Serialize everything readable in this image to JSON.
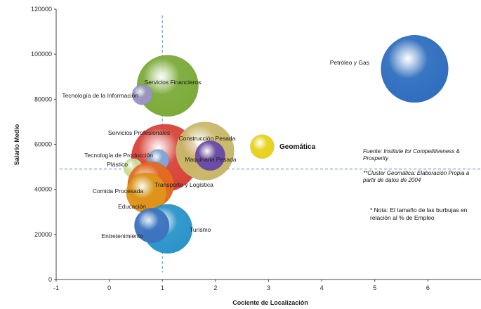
{
  "chart_data": {
    "type": "bubble",
    "xlabel": "Cociente de Localización",
    "ylabel": "Salario Medio",
    "xlim": [
      -1,
      7
    ],
    "ylim": [
      0,
      120000
    ],
    "x_ticks": [
      "-1",
      "0",
      "1",
      "2",
      "3",
      "4",
      "5",
      "6"
    ],
    "y_ticks": [
      "0",
      "20000",
      "40000",
      "60000",
      "80000",
      "100000",
      "120000"
    ],
    "reference_lines": {
      "x": 1.0,
      "y": 49000
    },
    "bubbles": [
      {
        "name": "Petróleo y Gas",
        "x": 5.75,
        "y": 93500,
        "size": 10,
        "color": "#2f6fbf"
      },
      {
        "name": "Servicios Financieros",
        "x": 1.1,
        "y": 86000,
        "size": 9,
        "color": "#7cab3a"
      },
      {
        "name": "Tecnología de la Información",
        "x": 0.62,
        "y": 82000,
        "size": 2.2,
        "color": "#9a93c6"
      },
      {
        "name": "Servicios Profesionales",
        "x": 1.05,
        "y": 54000,
        "size": 10,
        "color": "#d8443a"
      },
      {
        "name": "Construcción Pesada",
        "x": 1.8,
        "y": 57000,
        "size": 8.5,
        "color": "#c9b86a"
      },
      {
        "name": "Maquinaria Pesada",
        "x": 1.9,
        "y": 55000,
        "size": 3.8,
        "color": "#6a4aa8"
      },
      {
        "name": "Geomática",
        "x": 2.88,
        "y": 59000,
        "size": 2.8,
        "color": "#e8d21c"
      },
      {
        "name": "Tecnología de Producción",
        "x": 0.92,
        "y": 53000,
        "size": 2.4,
        "color": "#7fa7d8"
      },
      {
        "name": "Plástico",
        "x": 0.45,
        "y": 49500,
        "size": 2,
        "color": "#c9de9a"
      },
      {
        "name": "Transporte y Logística",
        "x": 0.78,
        "y": 42000,
        "size": 6.5,
        "color": "#e56b20"
      },
      {
        "name": "Comida Procesada",
        "x": 0.62,
        "y": 40500,
        "size": 3.6,
        "color": "#8ec44a"
      },
      {
        "name": "Educación",
        "x": 0.7,
        "y": 38500,
        "size": 5.5,
        "color": "#e0931a"
      },
      {
        "name": "Turismo",
        "x": 1.1,
        "y": 22500,
        "size": 7,
        "color": "#2b94c9"
      },
      {
        "name": "Entretenimiento",
        "x": 0.8,
        "y": 24000,
        "size": 4.6,
        "color": "#3d73c0"
      }
    ],
    "legend": "none"
  },
  "notes": {
    "fuente": "Fuente:  Institute for Competitiveness & Prosperity",
    "cluster": "**Cluster Geomática: Elaboración Propia a partir de datos de 2004",
    "nota": "* Nota: El tamaño de las burbujas en relación al % de Empleo"
  }
}
